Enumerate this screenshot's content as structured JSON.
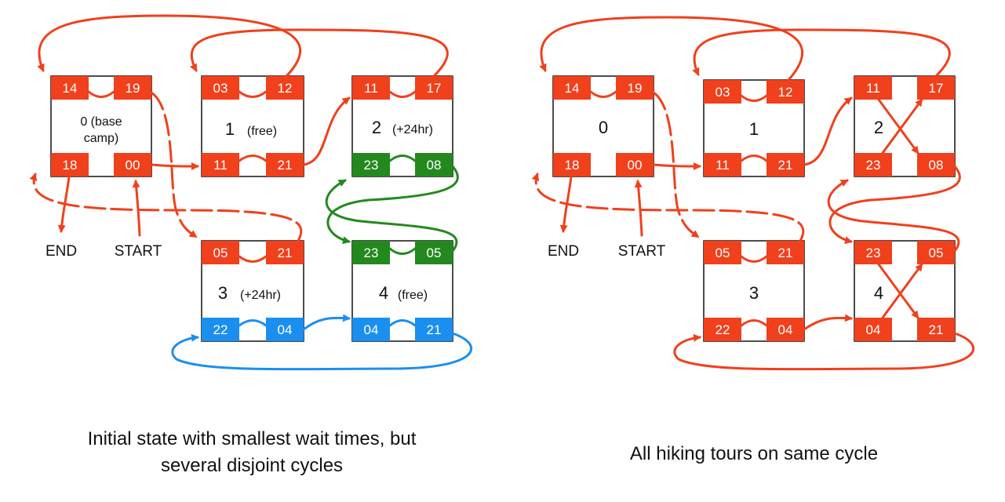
{
  "colors": {
    "red": "#f0401c",
    "green": "#23891e",
    "blue": "#1a8ff0",
    "outline": "#111111"
  },
  "left_panel": {
    "caption_line1": "Initial state with smallest wait times, but",
    "caption_line2": "several disjoint cycles",
    "end_label": "END",
    "start_label": "START",
    "nodes": [
      {
        "label": "0 (base",
        "label2": "camp)",
        "times": [
          "14",
          "19",
          "18",
          "00"
        ]
      },
      {
        "label": "1",
        "sub": "(free)",
        "times": [
          "03",
          "12",
          "11",
          "21"
        ]
      },
      {
        "label": "2",
        "sub": "(+24hr)",
        "times": [
          "11",
          "17",
          "23",
          "08"
        ]
      },
      {
        "label": "3",
        "sub": "(+24hr)",
        "times": [
          "05",
          "21",
          "22",
          "04"
        ]
      },
      {
        "label": "4",
        "sub": "(free)",
        "times": [
          "23",
          "05",
          "04",
          "21"
        ]
      }
    ]
  },
  "right_panel": {
    "caption": "All hiking tours on same cycle",
    "end_label": "END",
    "start_label": "START",
    "nodes": [
      {
        "label": "0",
        "times": [
          "14",
          "19",
          "18",
          "00"
        ]
      },
      {
        "label": "1",
        "times": [
          "03",
          "12",
          "11",
          "21"
        ]
      },
      {
        "label": "2",
        "times": [
          "11",
          "17",
          "23",
          "08"
        ]
      },
      {
        "label": "3",
        "times": [
          "05",
          "21",
          "22",
          "04"
        ]
      },
      {
        "label": "4",
        "times": [
          "23",
          "05",
          "04",
          "21"
        ]
      }
    ]
  }
}
